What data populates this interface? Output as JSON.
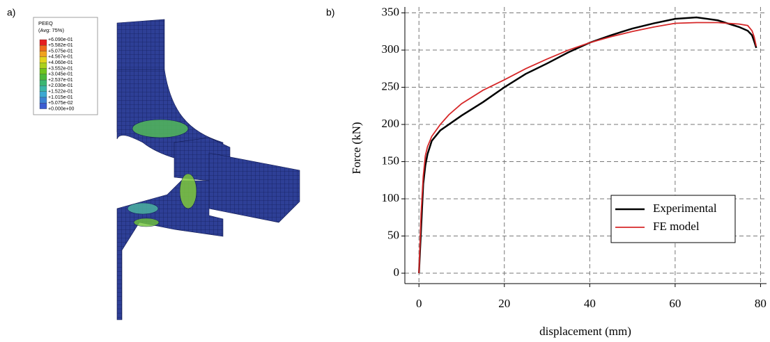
{
  "panel_labels": [
    "a)",
    "b)"
  ],
  "contour_legend": {
    "title": "PEEQ",
    "subtitle": "(Avg: 75%)",
    "labels": [
      "+6.090e-01",
      "+5.582e-01",
      "+5.075e-01",
      "+4.567e-01",
      "+4.060e-01",
      "+3.552e-01",
      "+3.045e-01",
      "+2.537e-01",
      "+2.030e-01",
      "+1.522e-01",
      "+1.015e-01",
      "+5.075e-02",
      "+0.000e+00"
    ],
    "colors": [
      "#e41e1e",
      "#ee6a1a",
      "#f0a21e",
      "#e2d41e",
      "#acd01e",
      "#70c41e",
      "#4cb83a",
      "#3cb672",
      "#3cb6a8",
      "#3ca8d2",
      "#3c82d2",
      "#3c5cd0"
    ]
  },
  "chart_data": {
    "type": "line",
    "xlabel": "displacement (mm)",
    "ylabel": "Force (kN)",
    "x": [
      0,
      0.5,
      1,
      1.5,
      2,
      3,
      5,
      7,
      10,
      15,
      20,
      25,
      30,
      35,
      40,
      45,
      50,
      55,
      60,
      65,
      70,
      75,
      77,
      78,
      78.5,
      79
    ],
    "series": [
      {
        "name": "Experimental",
        "color": "#000000",
        "values": [
          0,
          60,
          120,
          145,
          160,
          178,
          192,
          200,
          212,
          230,
          250,
          268,
          282,
          297,
          310,
          320,
          329,
          336,
          342,
          344,
          340,
          331,
          326,
          320,
          312,
          303
        ]
      },
      {
        "name": "FE model",
        "color": "#d62728",
        "values": [
          0,
          80,
          130,
          158,
          170,
          184,
          200,
          213,
          228,
          246,
          260,
          275,
          288,
          300,
          310,
          318,
          325,
          331,
          336,
          337,
          337,
          335,
          333,
          326,
          318,
          305
        ]
      }
    ],
    "xlim": [
      -3.3,
      81.4
    ],
    "ylim": [
      -14,
      358
    ],
    "xticks": [
      0,
      20,
      40,
      60,
      80
    ],
    "yticks": [
      0,
      50,
      100,
      150,
      200,
      250,
      300,
      350
    ],
    "grid": true,
    "legend": "lower right"
  }
}
